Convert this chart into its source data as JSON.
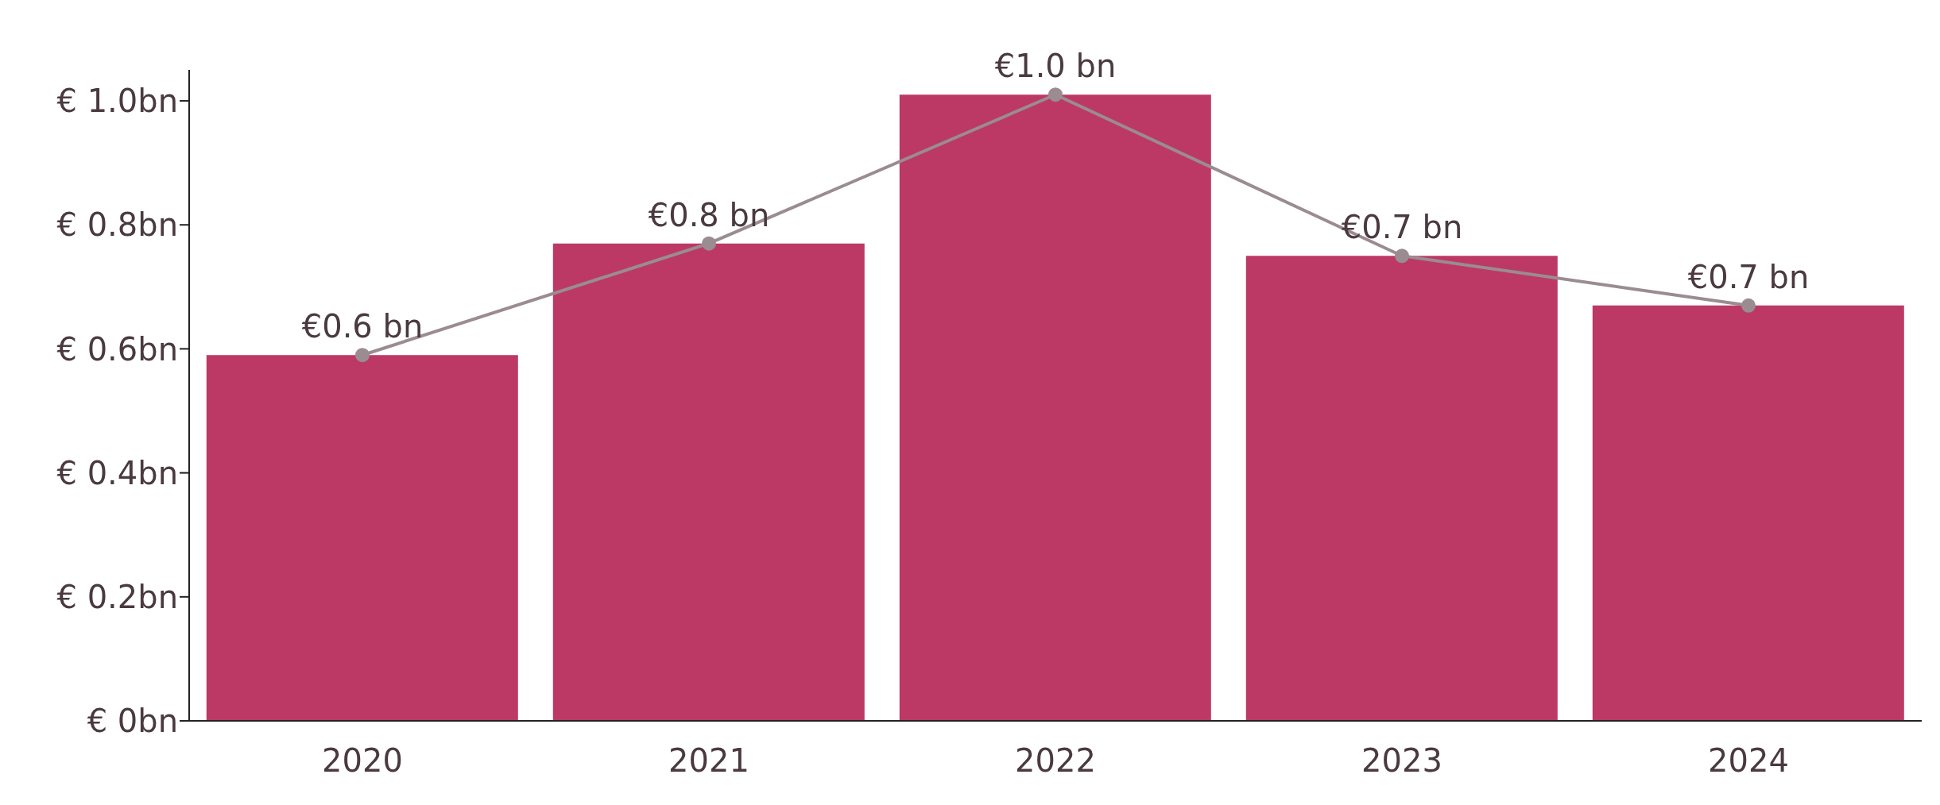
{
  "chart_data": {
    "type": "bar",
    "categories": [
      "2020",
      "2021",
      "2022",
      "2023",
      "2024"
    ],
    "series": [
      {
        "color": "#bc3966",
        "values": [
          0.59,
          0.77,
          1.01,
          0.75,
          0.67
        ]
      },
      {
        "type": "line",
        "color": "#9a8c90",
        "marker": "circle",
        "values": [
          0.59,
          0.77,
          1.01,
          0.75,
          0.67
        ],
        "value_labels": [
          "€0.6 bn",
          "€0.8 bn",
          "€1.0 bn",
          "€0.7 bn",
          "€0.7 bn"
        ]
      }
    ],
    "ylim": [
      0,
      1.05
    ],
    "yticks": [
      {
        "value": 0,
        "label": "€ 0bn"
      },
      {
        "value": 0.2,
        "label": "€ 0.2bn"
      },
      {
        "value": 0.4,
        "label": "€ 0.4bn"
      },
      {
        "value": 0.6,
        "label": "€ 0.6bn"
      },
      {
        "value": 0.8,
        "label": "€ 0.8bn"
      },
      {
        "value": 1.0,
        "label": "€ 1.0bn"
      }
    ],
    "grid": false,
    "legend": false
  }
}
